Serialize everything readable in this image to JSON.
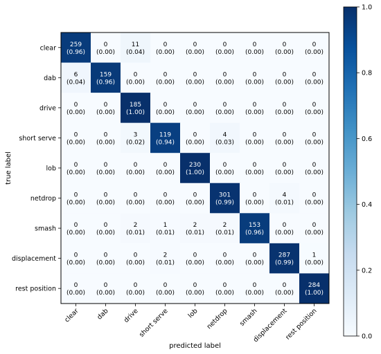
{
  "chart_data": {
    "type": "heatmap",
    "title": "",
    "xlabel": "predicted label",
    "ylabel": "true label",
    "labels": [
      "clear",
      "dab",
      "drive",
      "short serve",
      "lob",
      "netdrop",
      "smash",
      "displacement",
      "rest position"
    ],
    "counts": [
      [
        259,
        0,
        11,
        0,
        0,
        0,
        0,
        0,
        0
      ],
      [
        6,
        159,
        0,
        0,
        0,
        0,
        0,
        0,
        0
      ],
      [
        0,
        0,
        185,
        0,
        0,
        0,
        0,
        0,
        0
      ],
      [
        0,
        0,
        3,
        119,
        0,
        4,
        0,
        0,
        0
      ],
      [
        0,
        0,
        0,
        0,
        230,
        0,
        0,
        0,
        0
      ],
      [
        0,
        0,
        0,
        0,
        0,
        301,
        0,
        4,
        0
      ],
      [
        0,
        0,
        2,
        1,
        2,
        2,
        153,
        0,
        0
      ],
      [
        0,
        0,
        0,
        2,
        0,
        0,
        0,
        287,
        1
      ],
      [
        0,
        0,
        0,
        0,
        0,
        0,
        0,
        0,
        284
      ]
    ],
    "fractions": [
      [
        "(0.96)",
        "(0.00)",
        "(0.04)",
        "(0.00)",
        "(0.00)",
        "(0.00)",
        "(0.00)",
        "(0.00)",
        "(0.00)"
      ],
      [
        "(0.04)",
        "(0.96)",
        "(0.00)",
        "(0.00)",
        "(0.00)",
        "(0.00)",
        "(0.00)",
        "(0.00)",
        "(0.00)"
      ],
      [
        "(0.00)",
        "(0.00)",
        "(1.00)",
        "(0.00)",
        "(0.00)",
        "(0.00)",
        "(0.00)",
        "(0.00)",
        "(0.00)"
      ],
      [
        "(0.00)",
        "(0.00)",
        "(0.02)",
        "(0.94)",
        "(0.00)",
        "(0.03)",
        "(0.00)",
        "(0.00)",
        "(0.00)"
      ],
      [
        "(0.00)",
        "(0.00)",
        "(0.00)",
        "(0.00)",
        "(1.00)",
        "(0.00)",
        "(0.00)",
        "(0.00)",
        "(0.00)"
      ],
      [
        "(0.00)",
        "(0.00)",
        "(0.00)",
        "(0.00)",
        "(0.00)",
        "(0.99)",
        "(0.00)",
        "(0.01)",
        "(0.00)"
      ],
      [
        "(0.00)",
        "(0.00)",
        "(0.01)",
        "(0.01)",
        "(0.01)",
        "(0.01)",
        "(0.96)",
        "(0.00)",
        "(0.00)"
      ],
      [
        "(0.00)",
        "(0.00)",
        "(0.00)",
        "(0.01)",
        "(0.00)",
        "(0.00)",
        "(0.00)",
        "(0.99)",
        "(0.00)"
      ],
      [
        "(0.00)",
        "(0.00)",
        "(0.00)",
        "(0.00)",
        "(0.00)",
        "(0.00)",
        "(0.00)",
        "(0.00)",
        "(1.00)"
      ]
    ],
    "colorbar": {
      "range": [
        0.0,
        1.0
      ],
      "ticks": [
        "0.0",
        "0.2",
        "0.4",
        "0.6",
        "0.8",
        "1.0"
      ],
      "colormap": "Blues",
      "low_color": "#f7fbff",
      "high_color": "#08306b"
    },
    "grid": false
  }
}
